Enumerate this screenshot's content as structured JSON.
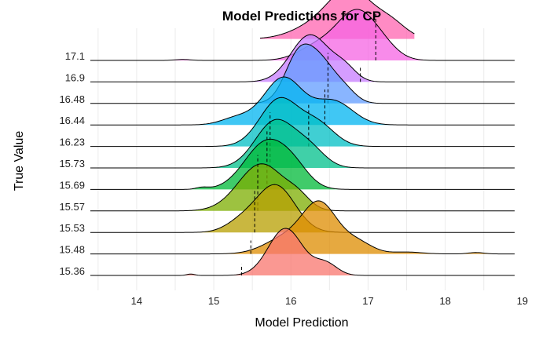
{
  "chart_data": {
    "type": "ridgeline",
    "title": "Model Predictions for CP",
    "xlabel": "Model Prediction",
    "ylabel": "True Value",
    "xlim": [
      13.4,
      18.9
    ],
    "x_ticks": [
      14,
      15,
      16,
      17,
      18,
      19
    ],
    "x_tick_labels": [
      "14",
      "15",
      "16",
      "17",
      "18",
      "19"
    ],
    "grid": true,
    "series": [
      {
        "label": "15.36",
        "true_value": 15.36,
        "color": "#F8766D",
        "peaks": [
          {
            "mean": 15.93,
            "sd": 0.22,
            "amp": 1.0
          },
          {
            "mean": 16.45,
            "sd": 0.15,
            "amp": 0.25
          }
        ],
        "noise": [
          {
            "mean": 14.7,
            "sd": 0.05,
            "amp": 0.03
          }
        ],
        "range": [
          13.4,
          18.9
        ]
      },
      {
        "label": "15.48",
        "true_value": 15.48,
        "color": "#DE8C00",
        "peaks": [
          {
            "mean": 16.38,
            "sd": 0.22,
            "amp": 1.0
          },
          {
            "mean": 15.95,
            "sd": 0.28,
            "amp": 0.35
          },
          {
            "mean": 16.85,
            "sd": 0.2,
            "amp": 0.25
          }
        ],
        "noise": [
          {
            "mean": 17.5,
            "sd": 0.2,
            "amp": 0.04
          },
          {
            "mean": 18.4,
            "sd": 0.1,
            "amp": 0.03
          }
        ],
        "range": [
          13.4,
          18.9
        ]
      },
      {
        "label": "15.53",
        "true_value": 15.53,
        "color": "#B79F00",
        "peaks": [
          {
            "mean": 15.8,
            "sd": 0.25,
            "amp": 1.0
          },
          {
            "mean": 15.35,
            "sd": 0.2,
            "amp": 0.2
          }
        ],
        "noise": [],
        "range": [
          13.4,
          18.9
        ]
      },
      {
        "label": "15.57",
        "true_value": 15.57,
        "color": "#7CAE00",
        "peaks": [
          {
            "mean": 15.62,
            "sd": 0.3,
            "amp": 1.0
          },
          {
            "mean": 16.1,
            "sd": 0.15,
            "amp": 0.2
          }
        ],
        "noise": [],
        "range": [
          13.4,
          18.9
        ]
      },
      {
        "label": "15.69",
        "true_value": 15.69,
        "color": "#00BA38",
        "peaks": [
          {
            "mean": 15.68,
            "sd": 0.28,
            "amp": 1.0
          },
          {
            "mean": 16.05,
            "sd": 0.2,
            "amp": 0.3
          }
        ],
        "noise": [
          {
            "mean": 14.85,
            "sd": 0.08,
            "amp": 0.04
          }
        ],
        "range": [
          13.4,
          18.9
        ]
      },
      {
        "label": "15.73",
        "true_value": 15.73,
        "color": "#00C08B",
        "peaks": [
          {
            "mean": 15.8,
            "sd": 0.26,
            "amp": 1.0
          },
          {
            "mean": 16.25,
            "sd": 0.2,
            "amp": 0.35
          }
        ],
        "noise": [],
        "range": [
          13.4,
          18.9
        ]
      },
      {
        "label": "16.23",
        "true_value": 16.23,
        "color": "#00BFC4",
        "peaks": [
          {
            "mean": 15.85,
            "sd": 0.25,
            "amp": 1.0
          },
          {
            "mean": 16.35,
            "sd": 0.22,
            "amp": 0.45
          }
        ],
        "noise": [],
        "range": [
          13.4,
          18.9
        ]
      },
      {
        "label": "16.44",
        "true_value": 16.44,
        "color": "#00B4F0",
        "peaks": [
          {
            "mean": 15.9,
            "sd": 0.25,
            "amp": 1.0
          },
          {
            "mean": 16.55,
            "sd": 0.25,
            "amp": 0.5
          },
          {
            "mean": 15.3,
            "sd": 0.2,
            "amp": 0.15
          }
        ],
        "noise": [],
        "range": [
          13.4,
          18.9
        ]
      },
      {
        "label": "16.48",
        "true_value": 16.48,
        "color": "#619CFF",
        "peaks": [
          {
            "mean": 16.1,
            "sd": 0.18,
            "amp": 1.0
          },
          {
            "mean": 16.4,
            "sd": 0.18,
            "amp": 0.75
          },
          {
            "mean": 16.7,
            "sd": 0.15,
            "amp": 0.25
          }
        ],
        "noise": [],
        "range": [
          13.4,
          18.9
        ]
      },
      {
        "label": "16.9",
        "true_value": 16.9,
        "color": "#C77CFF",
        "peaks": [
          {
            "mean": 16.25,
            "sd": 0.25,
            "amp": 1.0
          },
          {
            "mean": 16.7,
            "sd": 0.15,
            "amp": 0.25
          }
        ],
        "noise": [],
        "range": [
          13.4,
          18.9
        ]
      },
      {
        "label": "17.1",
        "true_value": 17.1,
        "color": "#F564E3",
        "peaks": [
          {
            "mean": 16.85,
            "sd": 0.25,
            "amp": 1.0
          },
          {
            "mean": 16.35,
            "sd": 0.25,
            "amp": 0.3
          },
          {
            "mean": 17.2,
            "sd": 0.2,
            "amp": 0.2
          }
        ],
        "noise": [
          {
            "mean": 14.6,
            "sd": 0.1,
            "amp": 0.02
          }
        ],
        "range": [
          13.4,
          18.9
        ]
      },
      {
        "label": "",
        "true_value": null,
        "color": "#FF64B0",
        "peaks": [
          {
            "mean": 16.78,
            "sd": 0.28,
            "amp": 1.0
          },
          {
            "mean": 16.3,
            "sd": 0.3,
            "amp": 0.25
          },
          {
            "mean": 17.3,
            "sd": 0.2,
            "amp": 0.3
          }
        ],
        "noise": [],
        "range": [
          15.6,
          17.6
        ]
      }
    ]
  }
}
